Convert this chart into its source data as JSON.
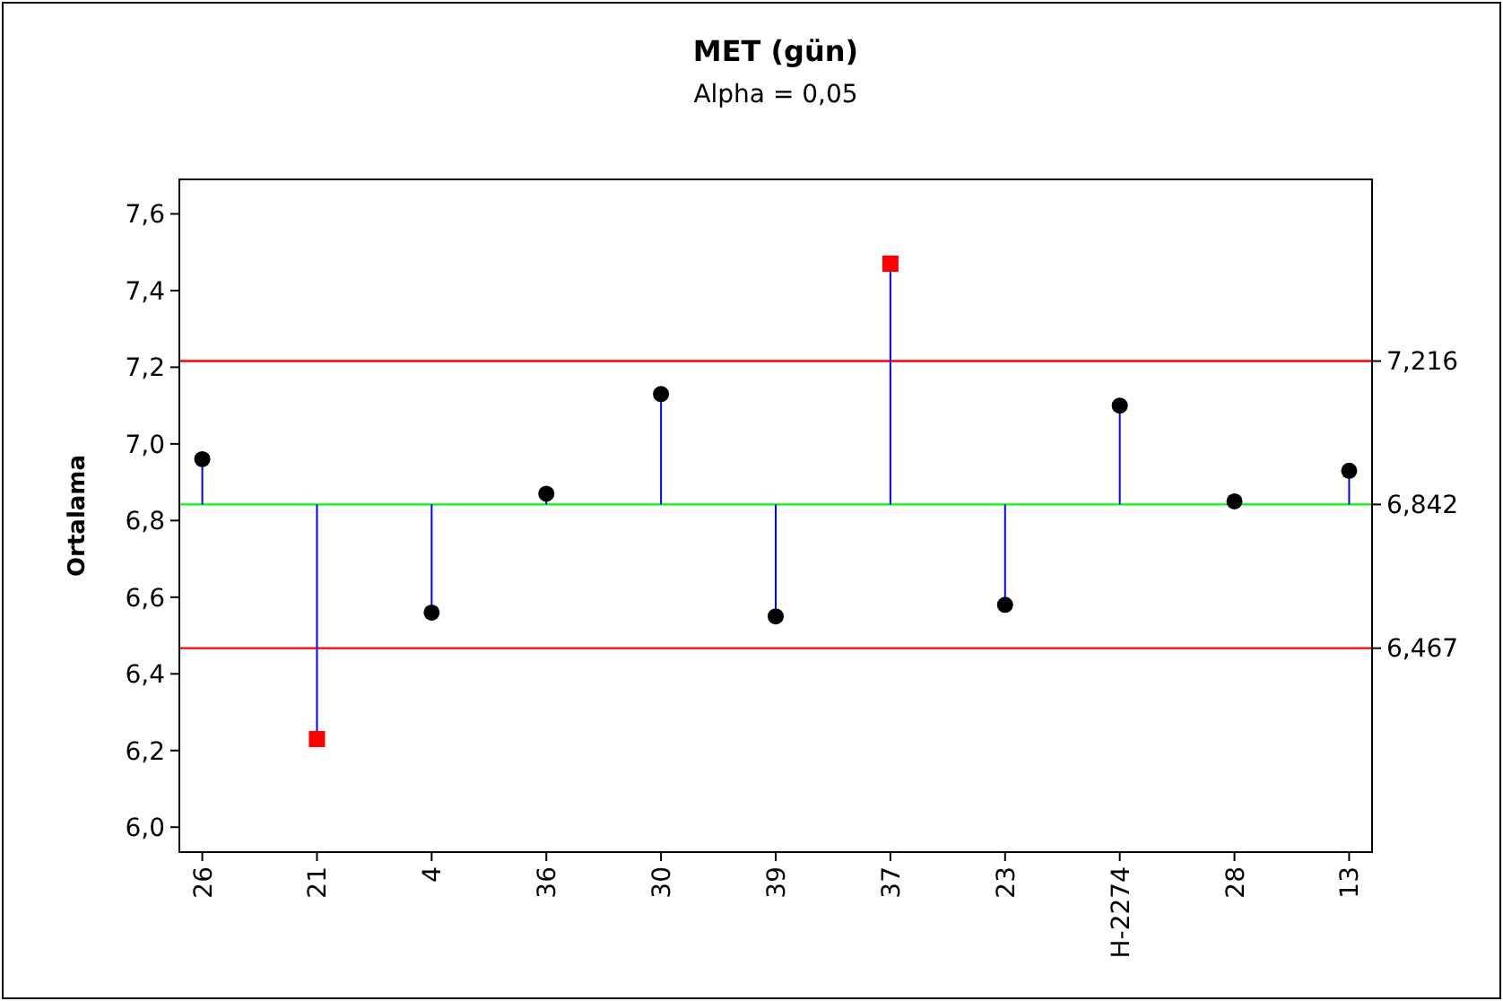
{
  "chart_data": {
    "type": "lollipop",
    "title": "MET (gün)",
    "subtitle": "Alpha = 0,05",
    "ylabel": "Ortalama",
    "categories": [
      "26",
      "21",
      "4",
      "36",
      "30",
      "39",
      "37",
      "23",
      "H-2274",
      "28",
      "13"
    ],
    "series": [
      {
        "color": "#000000",
        "marker": "circle",
        "values": [
          6.96,
          null,
          6.56,
          6.87,
          7.13,
          6.55,
          null,
          6.58,
          7.1,
          6.85,
          6.93
        ],
        "errors": [
          [
            6.842,
            6.96
          ],
          null,
          [
            6.56,
            6.842
          ],
          [
            6.842,
            6.87
          ],
          [
            6.842,
            7.13
          ],
          [
            6.55,
            6.842
          ],
          null,
          [
            6.58,
            6.842
          ],
          [
            6.842,
            7.1
          ],
          [
            6.842,
            6.85
          ],
          [
            6.842,
            6.93
          ]
        ]
      },
      {
        "color": "#ff0000",
        "marker": "square",
        "values": [
          null,
          6.23,
          null,
          null,
          null,
          null,
          7.47,
          null,
          null,
          null,
          null
        ],
        "errors": [
          null,
          [
            6.23,
            6.842
          ],
          null,
          null,
          null,
          null,
          [
            6.842,
            7.47
          ],
          null,
          null,
          null,
          null
        ]
      }
    ],
    "ylim": [
      5.935,
      7.69
    ],
    "yticks": [
      {
        "value": 6.0,
        "label": "6,0"
      },
      {
        "value": 6.2,
        "label": "6,2"
      },
      {
        "value": 6.4,
        "label": "6,4"
      },
      {
        "value": 6.6,
        "label": "6,6"
      },
      {
        "value": 6.8,
        "label": "6,8"
      },
      {
        "value": 7.0,
        "label": "7,0"
      },
      {
        "value": 7.2,
        "label": "7,2"
      },
      {
        "value": 7.4,
        "label": "7,4"
      },
      {
        "value": 7.6,
        "label": "7,6"
      }
    ],
    "ref_lines": [
      {
        "axis": "y",
        "value": 7.216,
        "label": "7,216",
        "color": "#ff0000"
      },
      {
        "axis": "y",
        "value": 6.842,
        "label": "6,842",
        "color": "#00ff00"
      },
      {
        "axis": "y",
        "value": 6.467,
        "label": "6,467",
        "color": "#ff0000"
      }
    ],
    "grid": false
  }
}
